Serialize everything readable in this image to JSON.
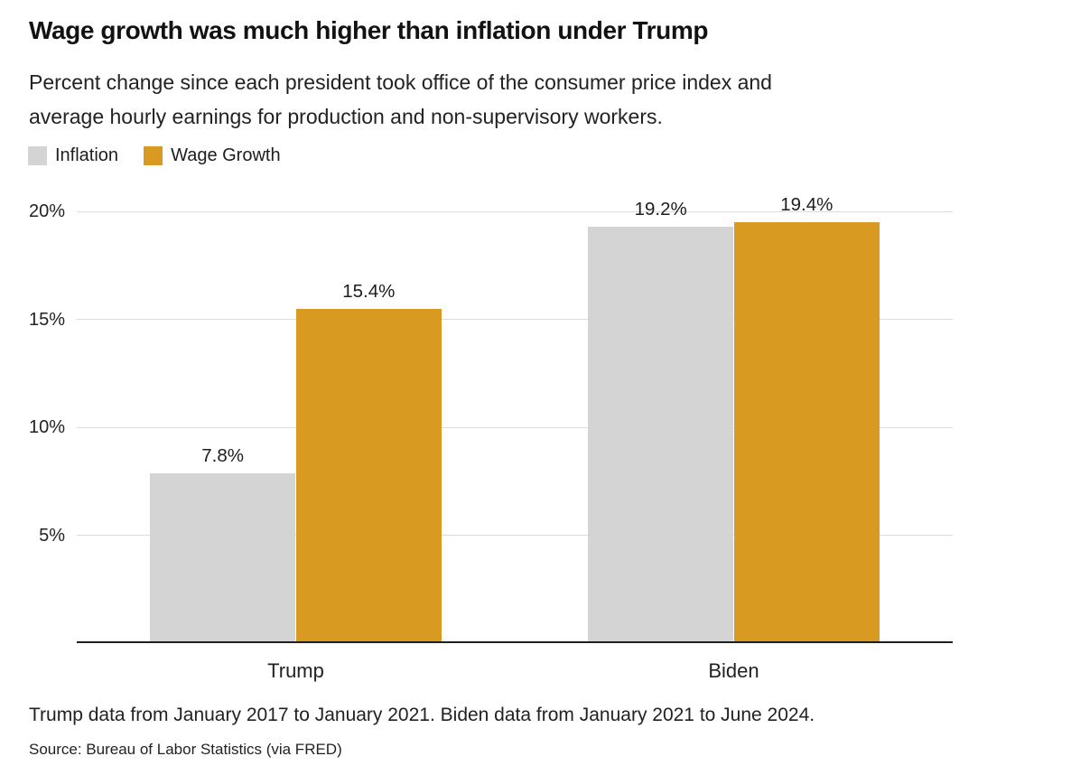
{
  "header": {
    "title": "Wage growth was much higher than inflation under Trump",
    "subtitle_line1": "Percent change since each president took office of the consumer price index and",
    "subtitle_line2": "average hourly earnings for production and non-supervisory workers."
  },
  "legend": {
    "items": [
      {
        "label": "Inflation",
        "color": "#d4d4d4"
      },
      {
        "label": "Wage Growth",
        "color": "#d89a20"
      }
    ]
  },
  "chart_data": {
    "type": "bar",
    "title": "Wage growth was much higher than inflation under Trump",
    "subtitle": "Percent change since each president took office of the consumer price index and average hourly earnings for production and non-supervisory workers.",
    "categories": [
      "Trump",
      "Biden"
    ],
    "series": [
      {
        "name": "Inflation",
        "color": "#d4d4d4",
        "values": [
          7.8,
          19.2
        ],
        "value_labels": [
          "7.8%",
          "19.2%"
        ]
      },
      {
        "name": "Wage Growth",
        "color": "#d89a20",
        "values": [
          15.4,
          19.4
        ],
        "value_labels": [
          "15.4%",
          "19.4%"
        ]
      }
    ],
    "xlabel": "",
    "ylabel": "",
    "ylim": [
      0,
      20
    ],
    "yticks": [
      {
        "value": 5,
        "label": "5%"
      },
      {
        "value": 10,
        "label": "10%"
      },
      {
        "value": 15,
        "label": "15%"
      },
      {
        "value": 20,
        "label": "20%"
      }
    ],
    "grid": true,
    "legend_position": "top-left",
    "colors": {
      "grid": "#dcdcdc",
      "axis": "#1f1f1f"
    }
  },
  "footer": {
    "note": "Trump data from January 2017 to January 2021. Biden data from January 2021 to June 2024.",
    "source": "Source: Bureau of Labor Statistics (via FRED)"
  }
}
